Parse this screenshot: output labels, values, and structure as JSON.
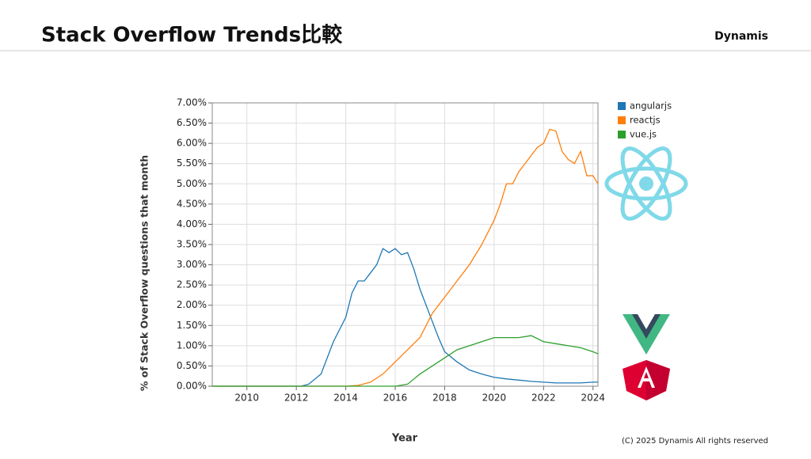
{
  "header": {
    "title": "Stack Overflow Trends比較",
    "brand": "Dynamis"
  },
  "footer": {
    "copyright": "(C) 2025 Dynamis All rights reserved"
  },
  "chart_data": {
    "type": "line",
    "xlabel": "Year",
    "ylabel": "% of Stack Overflow questions that month",
    "xlim": [
      2008.6,
      2024.2
    ],
    "xticks": [
      2010,
      2012,
      2014,
      2016,
      2018,
      2020,
      2022,
      2024
    ],
    "ylim": [
      0,
      7
    ],
    "yticks": [
      {
        "value": 0,
        "label": "0.00%"
      },
      {
        "value": 0.5,
        "label": "0.50%"
      },
      {
        "value": 1,
        "label": "1.00%"
      },
      {
        "value": 1.5,
        "label": "1.50%"
      },
      {
        "value": 2,
        "label": "2.00%"
      },
      {
        "value": 2.5,
        "label": "2.50%"
      },
      {
        "value": 3,
        "label": "3.00%"
      },
      {
        "value": 3.5,
        "label": "3.50%"
      },
      {
        "value": 4,
        "label": "4.00%"
      },
      {
        "value": 4.5,
        "label": "4.50%"
      },
      {
        "value": 5,
        "label": "5.00%"
      },
      {
        "value": 5.5,
        "label": "5.50%"
      },
      {
        "value": 6,
        "label": "6.00%"
      },
      {
        "value": 6.5,
        "label": "6.50%"
      },
      {
        "value": 7,
        "label": "7.00%"
      }
    ],
    "grid": true,
    "legend": "outside-right",
    "series": [
      {
        "name": "angularjs",
        "color": "#1f77b4",
        "x": [
          2008.6,
          2012.2,
          2012.5,
          2013,
          2013.5,
          2014,
          2014.25,
          2014.5,
          2014.75,
          2015,
          2015.25,
          2015.5,
          2015.75,
          2016,
          2016.25,
          2016.5,
          2016.75,
          2017,
          2017.25,
          2017.5,
          2017.75,
          2018,
          2018.5,
          2019,
          2019.5,
          2020,
          2020.5,
          2021,
          2021.5,
          2022,
          2022.5,
          2023,
          2023.5,
          2024,
          2024.2
        ],
        "values": [
          0,
          0,
          0.05,
          0.3,
          1.1,
          1.7,
          2.3,
          2.6,
          2.6,
          2.8,
          3.0,
          3.4,
          3.3,
          3.4,
          3.25,
          3.3,
          2.9,
          2.4,
          2.0,
          1.6,
          1.2,
          0.85,
          0.6,
          0.4,
          0.3,
          0.22,
          0.18,
          0.15,
          0.12,
          0.1,
          0.08,
          0.08,
          0.08,
          0.1,
          0.1
        ]
      },
      {
        "name": "reactjs",
        "color": "#ff7f0e",
        "x": [
          2008.6,
          2014,
          2014.5,
          2015,
          2015.5,
          2016,
          2016.5,
          2017,
          2017.25,
          2017.5,
          2018,
          2018.5,
          2019,
          2019.5,
          2020,
          2020.25,
          2020.5,
          2020.75,
          2021,
          2021.25,
          2021.5,
          2021.75,
          2022,
          2022.25,
          2022.5,
          2022.75,
          2023,
          2023.25,
          2023.5,
          2023.75,
          2024,
          2024.2
        ],
        "values": [
          0,
          0,
          0.02,
          0.1,
          0.3,
          0.6,
          0.9,
          1.2,
          1.5,
          1.8,
          2.2,
          2.6,
          3.0,
          3.5,
          4.1,
          4.5,
          5.0,
          5.0,
          5.3,
          5.5,
          5.7,
          5.9,
          6.0,
          6.35,
          6.3,
          5.8,
          5.6,
          5.5,
          5.8,
          5.2,
          5.2,
          5.0
        ]
      },
      {
        "name": "vue.js",
        "color": "#2ca02c",
        "x": [
          2008.6,
          2016,
          2016.5,
          2017,
          2017.5,
          2018,
          2018.5,
          2019,
          2019.5,
          2020,
          2020.5,
          2021,
          2021.5,
          2022,
          2022.5,
          2023,
          2023.5,
          2024,
          2024.2
        ],
        "values": [
          0,
          0,
          0.05,
          0.3,
          0.5,
          0.7,
          0.9,
          1.0,
          1.1,
          1.2,
          1.2,
          1.2,
          1.25,
          1.1,
          1.05,
          1.0,
          0.95,
          0.85,
          0.8
        ]
      }
    ]
  }
}
